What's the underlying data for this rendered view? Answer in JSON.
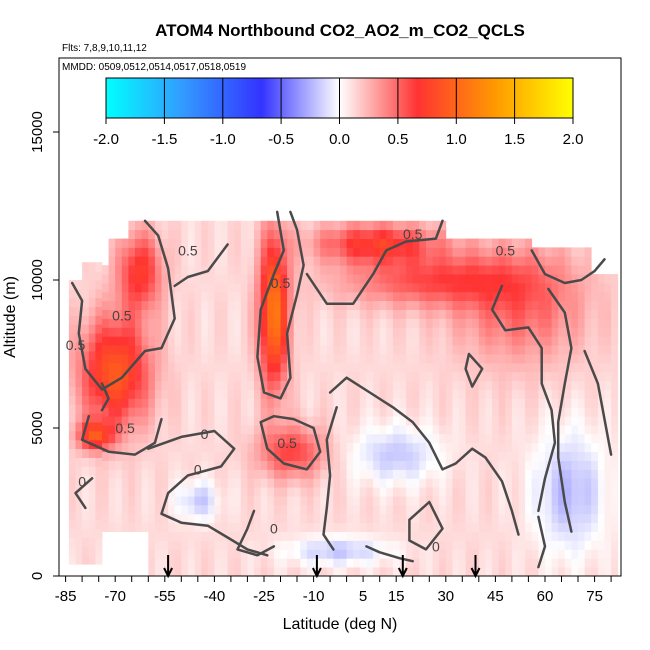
{
  "chart_data": {
    "type": "heatmap",
    "title": "ATOM4 Northbound CO2_AO2_m_CO2_QCLS",
    "subtitle_flights": "Flts: 7,8,9,10,11,12",
    "subtitle_dates": "MMDD: 0509,0512,0514,0517,0518,0519",
    "xlabel": "Latitude (deg N)",
    "ylabel": "Altitude (m)",
    "xlim": [
      -87,
      83
    ],
    "ylim": [
      0,
      17500
    ],
    "x_tick_labels": [
      "-85",
      "-70",
      "-55",
      "-40",
      "-25",
      "-10",
      "5",
      "15",
      "30",
      "45",
      "60",
      "75"
    ],
    "x_tick_values": [
      -85,
      -70,
      -55,
      -40,
      -25,
      -10,
      5,
      15,
      30,
      45,
      60,
      75
    ],
    "x_minor_step": 5,
    "y_tick_labels": [
      "0",
      "5000",
      "10000",
      "15000"
    ],
    "y_tick_values": [
      0,
      5000,
      10000,
      15000
    ],
    "colorbar": {
      "range": [
        -2.0,
        2.0
      ],
      "tick_labels": [
        "-2.0",
        "-1.5",
        "-1.0",
        "-0.5",
        "0.0",
        "0.5",
        "1.0",
        "1.5",
        "2.0"
      ],
      "tick_values": [
        -2.0,
        -1.5,
        -1.0,
        -0.5,
        0.0,
        0.5,
        1.0,
        1.5,
        2.0
      ],
      "colors": [
        "#00ffff",
        "#3399ff",
        "#3333ff",
        "#ffffff",
        "#ff3333",
        "#ff9900",
        "#ffff00"
      ]
    },
    "arrows_latitude": [
      -54,
      -9,
      17,
      39
    ],
    "regions": [
      {
        "value": 0.8,
        "lat": [
          -82,
          -58
        ],
        "alt": [
          9000,
          4800
        ]
      },
      {
        "value": 0.7,
        "lat": [
          -82,
          -70
        ],
        "alt": [
          5300,
          4200
        ]
      },
      {
        "value": 0.6,
        "lat": [
          -70,
          -55
        ],
        "alt": [
          11800,
          8800
        ]
      },
      {
        "value": 1.0,
        "lat": [
          -27,
          -17
        ],
        "alt": [
          11800,
          6000
        ]
      },
      {
        "value": 0.6,
        "lat": [
          -12,
          30
        ],
        "alt": [
          12000,
          10500
        ]
      },
      {
        "value": 0.5,
        "lat": [
          -28,
          -5
        ],
        "alt": [
          5200,
          3200
        ]
      },
      {
        "value": 0.45,
        "lat": [
          -5,
          55
        ],
        "alt": [
          11000,
          9000
        ]
      },
      {
        "value": 0.4,
        "lat": [
          30,
          75
        ],
        "alt": [
          11500,
          7000
        ]
      },
      {
        "value": -0.3,
        "lat": [
          -52,
          -38
        ],
        "alt": [
          3300,
          1800
        ]
      },
      {
        "value": -0.3,
        "lat": [
          0,
          30
        ],
        "alt": [
          5200,
          3000
        ]
      },
      {
        "value": -0.35,
        "lat": [
          55,
          80
        ],
        "alt": [
          5200,
          500
        ]
      },
      {
        "value": -0.3,
        "lat": [
          -20,
          15
        ],
        "alt": [
          1400,
          300
        ]
      }
    ],
    "contour_labels": [
      {
        "text": "0.5",
        "lat": -48,
        "alt": 11000
      },
      {
        "text": "0.5",
        "lat": -68,
        "alt": 8800
      },
      {
        "text": "0.5",
        "lat": -82,
        "alt": 7800
      },
      {
        "text": "0.5",
        "lat": -67,
        "alt": 5000
      },
      {
        "text": "0.5",
        "lat": -20,
        "alt": 9900
      },
      {
        "text": "0.5",
        "lat": -18,
        "alt": 4500
      },
      {
        "text": "0.5",
        "lat": 20,
        "alt": 11550
      },
      {
        "text": "0.5",
        "lat": 48,
        "alt": 11000
      },
      {
        "text": "0",
        "lat": -43,
        "alt": 4800
      },
      {
        "text": "0",
        "lat": -45,
        "alt": 3600
      },
      {
        "text": "0",
        "lat": -80,
        "alt": 3200
      },
      {
        "text": "0",
        "lat": -22,
        "alt": 1600
      },
      {
        "text": "0",
        "lat": 27,
        "alt": 1000
      }
    ]
  }
}
